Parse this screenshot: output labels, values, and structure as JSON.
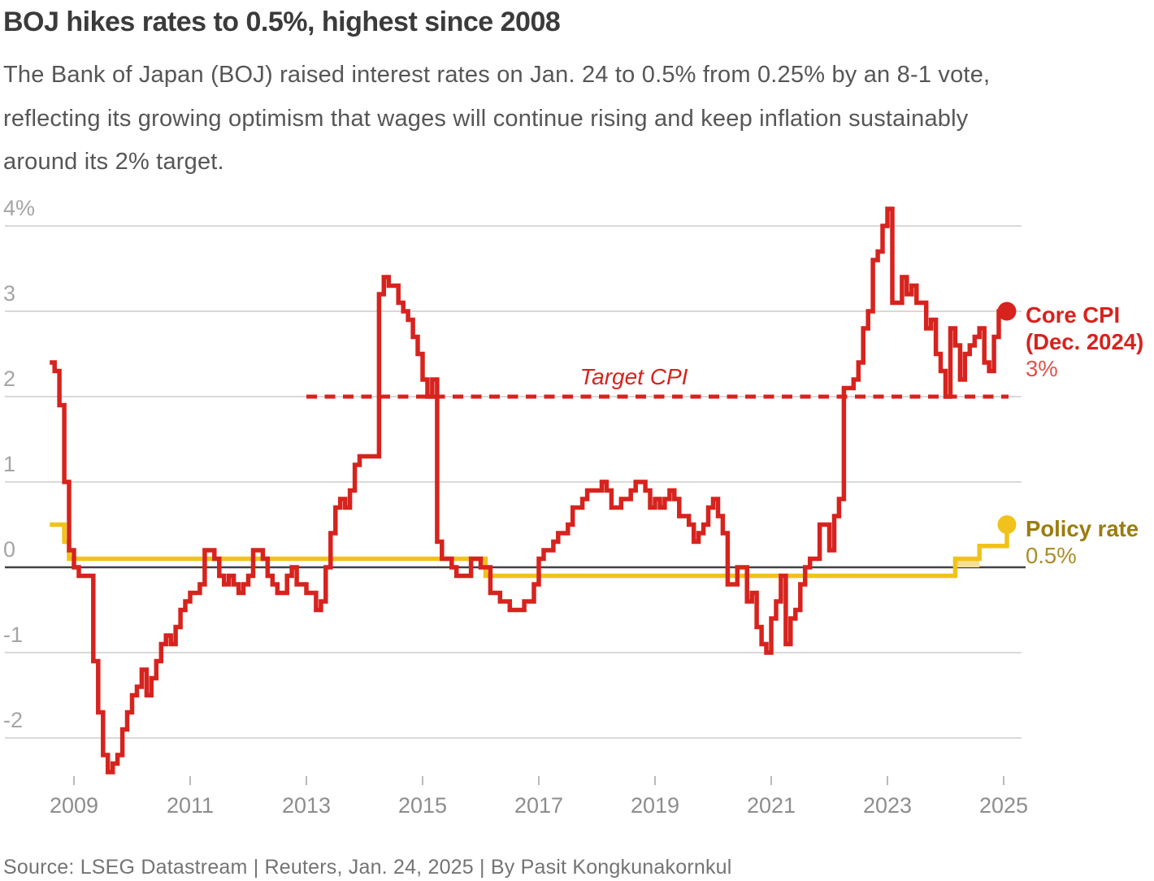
{
  "header": {
    "title": "BOJ hikes rates to 0.5%, highest since 2008",
    "subtitle_lines": [
      "The Bank of Japan (BOJ) raised interest rates on Jan. 24 to 0.5% from 0.25% by an 8-1 vote,",
      "reflecting its growing optimism that wages will continue rising and keep inflation sustainably",
      "around its 2% target."
    ]
  },
  "footer": {
    "source": "Source: LSEG Datastream | Reuters, Jan. 24, 2025 | By Pasit Kongkunakornkul"
  },
  "colors": {
    "red": "#d7231e",
    "red_value": "#e2524c",
    "gold": "#f1c21b",
    "gold_dark": "#9b7c10",
    "gold_value": "#ab8d28",
    "band": "#f6e096",
    "grid": "#d9d9d9",
    "zero_axis": "#414141",
    "tick": "#b9b9b9",
    "y_label": "#a5a5a5",
    "x_label": "#8d8d8d"
  },
  "chart_data": {
    "type": "line",
    "subtype": "step",
    "x_axis": {
      "ticks": [
        2009,
        2011,
        2013,
        2015,
        2017,
        2019,
        2021,
        2023,
        2025
      ],
      "range": [
        2008.55,
        2025.3
      ]
    },
    "y_axis": {
      "ticks": [
        "4%",
        "3",
        "2",
        "1",
        "0",
        "-1",
        "-2"
      ],
      "tick_values": [
        4,
        3,
        2,
        1,
        0,
        -1,
        -2
      ],
      "range": [
        -2.5,
        4.3
      ],
      "unit": "percent"
    },
    "target_line": {
      "label": "Target CPI",
      "value": 2,
      "start": "2013-01",
      "style": "dashed"
    },
    "series": [
      {
        "name": "Core CPI",
        "color_key": "red",
        "start": "2008-08",
        "interval": "monthly",
        "values": [
          2.4,
          2.3,
          1.9,
          1.0,
          0.2,
          0.0,
          -0.1,
          -0.1,
          -0.1,
          -1.1,
          -1.7,
          -2.2,
          -2.4,
          -2.3,
          -2.2,
          -1.9,
          -1.7,
          -1.5,
          -1.4,
          -1.2,
          -1.5,
          -1.3,
          -1.1,
          -0.9,
          -0.8,
          -0.9,
          -0.7,
          -0.5,
          -0.4,
          -0.3,
          -0.3,
          -0.2,
          0.2,
          0.2,
          0.1,
          -0.1,
          -0.2,
          -0.1,
          -0.2,
          -0.3,
          -0.2,
          -0.1,
          0.2,
          0.2,
          0.1,
          -0.1,
          -0.2,
          -0.3,
          -0.3,
          -0.1,
          0.0,
          -0.2,
          -0.2,
          -0.3,
          -0.3,
          -0.5,
          -0.4,
          0.0,
          0.4,
          0.7,
          0.8,
          0.7,
          0.9,
          1.2,
          1.3,
          1.3,
          1.3,
          1.3,
          3.2,
          3.4,
          3.3,
          3.3,
          3.1,
          3.0,
          2.9,
          2.7,
          2.5,
          2.2,
          2.0,
          2.2,
          0.3,
          0.1,
          0.1,
          0.0,
          -0.1,
          -0.1,
          -0.1,
          0.1,
          0.1,
          0.0,
          0.0,
          -0.3,
          -0.3,
          -0.4,
          -0.4,
          -0.5,
          -0.5,
          -0.5,
          -0.4,
          -0.4,
          -0.2,
          0.1,
          0.2,
          0.2,
          0.3,
          0.4,
          0.4,
          0.5,
          0.7,
          0.7,
          0.8,
          0.9,
          0.9,
          0.9,
          1.0,
          0.9,
          0.7,
          0.7,
          0.8,
          0.8,
          0.9,
          1.0,
          1.0,
          0.9,
          0.7,
          0.8,
          0.7,
          0.8,
          0.9,
          0.8,
          0.6,
          0.6,
          0.5,
          0.3,
          0.4,
          0.5,
          0.7,
          0.8,
          0.6,
          0.4,
          -0.2,
          -0.2,
          0.0,
          0.0,
          -0.4,
          -0.3,
          -0.7,
          -0.9,
          -1.0,
          -0.6,
          -0.4,
          -0.1,
          -0.9,
          -0.6,
          -0.5,
          -0.2,
          0.0,
          0.1,
          0.1,
          0.5,
          0.5,
          0.2,
          0.6,
          0.8,
          2.1,
          2.1,
          2.2,
          2.4,
          2.8,
          3.0,
          3.6,
          3.7,
          4.0,
          4.2,
          3.1,
          3.1,
          3.4,
          3.2,
          3.3,
          3.1,
          3.1,
          2.8,
          2.9,
          2.5,
          2.3,
          2.0,
          2.8,
          2.6,
          2.2,
          2.5,
          2.6,
          2.7,
          2.8,
          2.4,
          2.3,
          2.7,
          3.0
        ],
        "end_label": {
          "line1": "Core CPI",
          "line2": "(Dec. 2024)",
          "value": "3%"
        }
      },
      {
        "name": "Policy rate",
        "color_key": "gold",
        "steps": [
          [
            "2008-08",
            0.5
          ],
          [
            "2008-11",
            0.3
          ],
          [
            "2008-12",
            0.1
          ],
          [
            "2016-02",
            -0.1
          ],
          [
            "2024-03",
            0.1
          ],
          [
            "2024-08",
            0.25
          ],
          [
            "2025-01",
            0.5
          ]
        ],
        "band": {
          "from": "2024-03",
          "to": "2024-08",
          "low": 0,
          "high": 0.1
        },
        "end_label": {
          "line1": "Policy rate",
          "value": "0.5%"
        }
      }
    ]
  }
}
